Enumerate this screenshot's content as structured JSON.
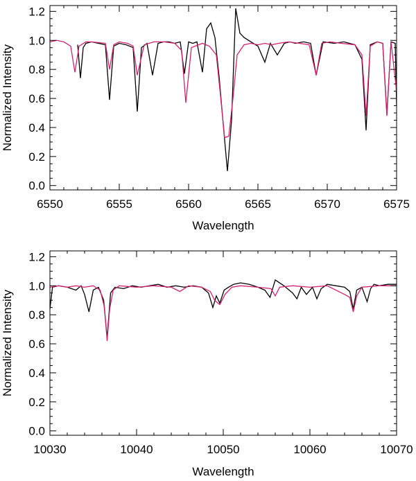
{
  "chart_data": [
    {
      "type": "line",
      "xlabel": "Wavelength",
      "ylabel": "Normalized Intensity",
      "xlim": [
        6550,
        6575
      ],
      "ylim": [
        -0.03,
        1.24
      ],
      "xticks": [
        6550,
        6555,
        6560,
        6565,
        6570,
        6575
      ],
      "xtick_labels": [
        "6550",
        "6555",
        "6560",
        "6565",
        "6570",
        "6575"
      ],
      "yticks": [
        0.0,
        0.2,
        0.4,
        0.6,
        0.8,
        1.0,
        1.2
      ],
      "ytick_labels": [
        "0.0",
        "0.2",
        "0.4",
        "0.6",
        "0.8",
        "1.0",
        "1.2"
      ],
      "grid": false,
      "series": [
        {
          "color": "#000000",
          "x": [
            6552.0,
            6552.2,
            6552.4,
            6552.6,
            6553.0,
            6553.5,
            6554.0,
            6554.3,
            6554.6,
            6555.0,
            6555.5,
            6556.0,
            6556.3,
            6556.6,
            6557.0,
            6557.4,
            6557.8,
            6558.2,
            6558.6,
            6559.0,
            6559.4,
            6559.7,
            6560.0,
            6560.3,
            6560.6,
            6561.0,
            6561.3,
            6561.6,
            6561.9,
            6562.2,
            6562.5,
            6562.8,
            6563.1,
            6563.4,
            6563.7,
            6564.0,
            6564.5,
            6565.0,
            6565.5,
            6565.9,
            6566.4,
            6566.9,
            6567.3,
            6567.7,
            6568.3,
            6568.8,
            6569.2,
            6569.7,
            6570.5,
            6571.2,
            6572.0,
            6572.5,
            6572.8,
            6573.1,
            6573.6,
            6574.0,
            6574.3,
            6574.6,
            6574.9,
            6575.0
          ],
          "y": [
            0.97,
            0.74,
            0.95,
            0.98,
            0.99,
            0.98,
            0.97,
            0.59,
            0.96,
            0.98,
            0.97,
            0.95,
            0.51,
            0.95,
            0.98,
            0.76,
            0.98,
            0.99,
            0.99,
            0.98,
            0.99,
            0.77,
            0.99,
            0.98,
            0.99,
            0.78,
            1.08,
            1.12,
            1.02,
            0.75,
            0.42,
            0.1,
            0.45,
            1.22,
            1.05,
            1.02,
            0.99,
            0.96,
            0.85,
            0.98,
            0.9,
            0.98,
            0.99,
            0.98,
            0.99,
            0.98,
            0.76,
            0.99,
            0.98,
            0.99,
            0.97,
            0.87,
            0.38,
            0.97,
            0.99,
            0.98,
            0.49,
            0.99,
            0.98,
            0.55
          ]
        },
        {
          "color": "#d4206e",
          "x": [
            6550.0,
            6550.5,
            6551.0,
            6551.5,
            6551.8,
            6552.1,
            6552.6,
            6553.0,
            6554.0,
            6554.3,
            6554.6,
            6555.0,
            6555.6,
            6556.0,
            6556.3,
            6556.8,
            6557.5,
            6558.2,
            6559.0,
            6559.5,
            6559.8,
            6560.2,
            6561.0,
            6561.5,
            6562.0,
            6562.3,
            6562.6,
            6562.9,
            6563.2,
            6563.5,
            6564.0,
            6564.5,
            6565.0,
            6565.5,
            6566.0,
            6566.5,
            6567.2,
            6568.0,
            6568.7,
            6569.2,
            6569.6,
            6570.2,
            6571.0,
            6572.0,
            6572.5,
            6572.8,
            6573.1,
            6573.6,
            6574.0,
            6574.3,
            6574.6,
            6575.0
          ],
          "y": [
            0.99,
            1.0,
            0.99,
            0.96,
            0.78,
            0.96,
            0.99,
            0.99,
            0.98,
            0.8,
            0.97,
            0.99,
            0.98,
            0.96,
            0.76,
            0.97,
            0.99,
            0.99,
            0.98,
            0.93,
            0.57,
            0.95,
            0.98,
            0.96,
            0.9,
            0.62,
            0.33,
            0.34,
            0.6,
            0.9,
            0.97,
            0.98,
            0.97,
            0.98,
            0.97,
            0.98,
            0.99,
            0.98,
            0.97,
            0.76,
            0.98,
            0.99,
            0.98,
            0.97,
            0.9,
            0.48,
            0.96,
            0.99,
            0.98,
            0.48,
            0.99,
            0.65
          ]
        }
      ]
    },
    {
      "type": "line",
      "xlabel": "Wavelength",
      "ylabel": "Normalized Intensity",
      "xlim": [
        10030,
        10070
      ],
      "ylim": [
        -0.03,
        1.24
      ],
      "xticks": [
        10030,
        10040,
        10050,
        10060,
        10070
      ],
      "xtick_labels": [
        "10030",
        "10040",
        "10050",
        "10060",
        "10070"
      ],
      "yticks": [
        0.0,
        0.2,
        0.4,
        0.6,
        0.8,
        1.0,
        1.2
      ],
      "ytick_labels": [
        "0.0",
        "0.2",
        "0.4",
        "0.6",
        "0.8",
        "1.0",
        "1.2"
      ],
      "grid": false,
      "series": [
        {
          "color": "#000000",
          "x": [
            10030.0,
            10030.3,
            10031.0,
            10032.0,
            10033.0,
            10033.6,
            10034.0,
            10034.5,
            10035.0,
            10035.6,
            10036.2,
            10036.6,
            10037.0,
            10037.5,
            10038.5,
            10039.5,
            10040.5,
            10041.5,
            10042.5,
            10043.5,
            10044.5,
            10045.5,
            10046.5,
            10047.5,
            10048.3,
            10048.8,
            10049.2,
            10049.6,
            10050.1,
            10050.6,
            10051.2,
            10052.0,
            10053.0,
            10054.0,
            10054.8,
            10055.4,
            10056.0,
            10057.0,
            10058.0,
            10058.5,
            10059.0,
            10059.6,
            10060.3,
            10060.8,
            10061.3,
            10062.0,
            10063.0,
            10064.0,
            10064.6,
            10065.0,
            10065.4,
            10066.0,
            10066.6,
            10067.0,
            10067.4,
            10068.0,
            10069.0,
            10070.0
          ],
          "y": [
            0.84,
            0.99,
            1.0,
            0.99,
            0.97,
            1.0,
            0.94,
            0.82,
            0.97,
            0.99,
            0.9,
            0.64,
            0.95,
            0.99,
            0.98,
            1.0,
            0.99,
            1.0,
            1.01,
            0.99,
            1.0,
            0.99,
            1.0,
            0.99,
            0.95,
            0.85,
            0.93,
            0.88,
            0.97,
            0.99,
            1.01,
            1.02,
            1.01,
            0.99,
            0.97,
            0.92,
            1.04,
            1.0,
            0.95,
            0.91,
            0.99,
            0.94,
            0.99,
            0.91,
            0.98,
            1.01,
            1.0,
            0.99,
            0.96,
            0.84,
            0.97,
            0.99,
            0.89,
            0.98,
            1.01,
            1.0,
            1.01,
            1.01
          ]
        },
        {
          "color": "#d4206e",
          "x": [
            10030.0,
            10031.0,
            10032.0,
            10033.0,
            10034.0,
            10035.0,
            10035.8,
            10036.3,
            10036.6,
            10036.9,
            10037.3,
            10038.0,
            10040.0,
            10042.0,
            10044.0,
            10045.0,
            10046.0,
            10047.5,
            10048.5,
            10049.0,
            10049.6,
            10050.2,
            10051.0,
            10052.0,
            10054.0,
            10055.5,
            10056.0,
            10056.5,
            10058.0,
            10060.0,
            10062.0,
            10063.0,
            10064.0,
            10064.6,
            10065.0,
            10065.4,
            10066.0,
            10068.0,
            10070.0
          ],
          "y": [
            0.99,
            1.0,
            0.99,
            1.0,
            0.99,
            1.0,
            0.97,
            0.85,
            0.62,
            0.84,
            0.97,
            1.0,
            0.99,
            1.0,
            0.99,
            0.96,
            1.0,
            0.99,
            0.96,
            0.9,
            0.87,
            0.94,
            0.99,
            1.0,
            0.99,
            0.98,
            0.93,
            0.99,
            1.0,
            0.99,
            1.0,
            0.97,
            0.94,
            0.92,
            0.82,
            0.93,
            0.99,
            1.0,
            1.0
          ]
        }
      ]
    }
  ]
}
